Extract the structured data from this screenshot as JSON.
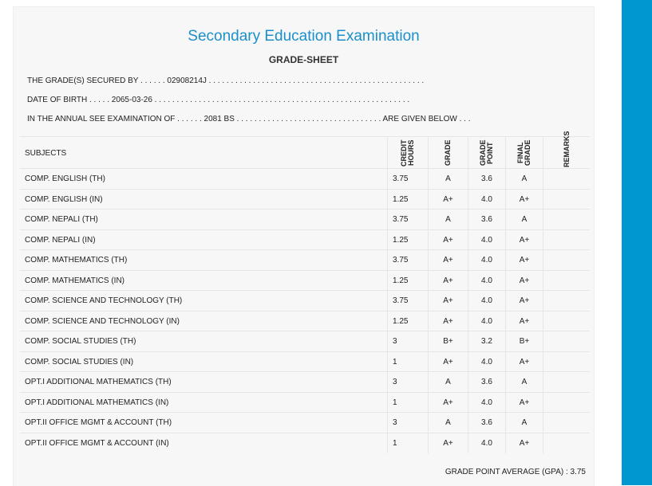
{
  "header": {
    "title": "Secondary Education Examination",
    "subtitle": "GRADE-SHEET"
  },
  "info": [
    "THE GRADE(S) SECURED BY . . . . . . 02908214J . . . . . . . . . . . . . . . . . . . . . . . . . . . . . . . . . . . . . . . . . . . . . . . . .",
    "DATE OF BIRTH . . . . . 2065-03-26 . . . . . . . . . . . . . . . . . . . . . . . . . . . . . . . . . . . . . . . . . . . . . . . . . . . . . . . . . .",
    "IN THE ANNUAL SEE EXAMINATION OF . . . . . . 2081 BS . . . . . . . . . . . . . . . . . . . . . . . . . . . . . . . . . ARE GIVEN BELOW . . ."
  ],
  "table": {
    "columns": [
      "SUBJECTS",
      "CREDIT HOURS",
      "GRADE",
      "GRADE POINT",
      "FINAL GRADE",
      "REMARKS"
    ],
    "rows": [
      [
        "COMP. ENGLISH (TH)",
        "3.75",
        "A",
        "3.6",
        "A"
      ],
      [
        "COMP. ENGLISH (IN)",
        "1.25",
        "A+",
        "4.0",
        "A+"
      ],
      [
        "COMP. NEPALI (TH)",
        "3.75",
        "A",
        "3.6",
        "A"
      ],
      [
        "COMP. NEPALI (IN)",
        "1.25",
        "A+",
        "4.0",
        "A+"
      ],
      [
        "COMP. MATHEMATICS (TH)",
        "3.75",
        "A+",
        "4.0",
        "A+"
      ],
      [
        "COMP. MATHEMATICS (IN)",
        "1.25",
        "A+",
        "4.0",
        "A+"
      ],
      [
        "COMP. SCIENCE AND TECHNOLOGY (TH)",
        "3.75",
        "A+",
        "4.0",
        "A+"
      ],
      [
        "COMP. SCIENCE AND TECHNOLOGY (IN)",
        "1.25",
        "A+",
        "4.0",
        "A+"
      ],
      [
        "COMP. SOCIAL STUDIES (TH)",
        "3",
        "B+",
        "3.2",
        "B+"
      ],
      [
        "COMP. SOCIAL STUDIES (IN)",
        "1",
        "A+",
        "4.0",
        "A+"
      ],
      [
        "OPT.I ADDITIONAL MATHEMATICS (TH)",
        "3",
        "A",
        "3.6",
        "A"
      ],
      [
        "OPT.I ADDITIONAL MATHEMATICS (IN)",
        "1",
        "A+",
        "4.0",
        "A+"
      ],
      [
        "OPT.II OFFICE MGMT & ACCOUNT (TH)",
        "3",
        "A",
        "3.6",
        "A"
      ],
      [
        "OPT.II OFFICE MGMT & ACCOUNT (IN)",
        "1",
        "A+",
        "4.0",
        "A+"
      ]
    ]
  },
  "footer": "GRADE POINT AVERAGE (GPA) : 3.75"
}
